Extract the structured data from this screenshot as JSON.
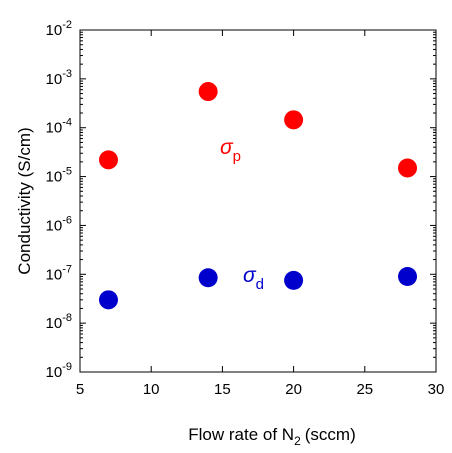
{
  "chart_data": {
    "type": "scatter",
    "title": "",
    "xlabel": "Flow rate of N",
    "xlabel_subscript": "2",
    "xlabel_suffix": "(sccm)",
    "ylabel": "Conductivity (S/cm)",
    "xlim": [
      5,
      30
    ],
    "ylim": [
      1e-09,
      0.01
    ],
    "yscale": "log",
    "x_ticks": [
      5,
      10,
      15,
      20,
      25,
      30
    ],
    "y_ticks": [
      {
        "value": 1e-09,
        "base": "10",
        "exp": "-9"
      },
      {
        "value": 1e-08,
        "base": "10",
        "exp": "-8"
      },
      {
        "value": 1e-07,
        "base": "10",
        "exp": "-7"
      },
      {
        "value": 1e-06,
        "base": "10",
        "exp": "-6"
      },
      {
        "value": 1e-05,
        "base": "10",
        "exp": "-5"
      },
      {
        "value": 0.0001,
        "base": "10",
        "exp": "-4"
      },
      {
        "value": 0.001,
        "base": "10",
        "exp": "-3"
      },
      {
        "value": 0.01,
        "base": "10",
        "exp": "-2"
      }
    ],
    "grid": false,
    "series": [
      {
        "name": "σp",
        "symbol": "σ",
        "subscript": "p",
        "color": "#ff0000",
        "x": [
          7,
          14,
          20,
          28
        ],
        "y": [
          2.2e-05,
          0.00055,
          0.000145,
          1.5e-05
        ]
      },
      {
        "name": "σd",
        "symbol": "σ",
        "subscript": "d",
        "color": "#0000cc",
        "x": [
          7,
          14,
          20,
          28
        ],
        "y": [
          3e-08,
          8.5e-08,
          7.5e-08,
          9e-08
        ]
      }
    ]
  }
}
